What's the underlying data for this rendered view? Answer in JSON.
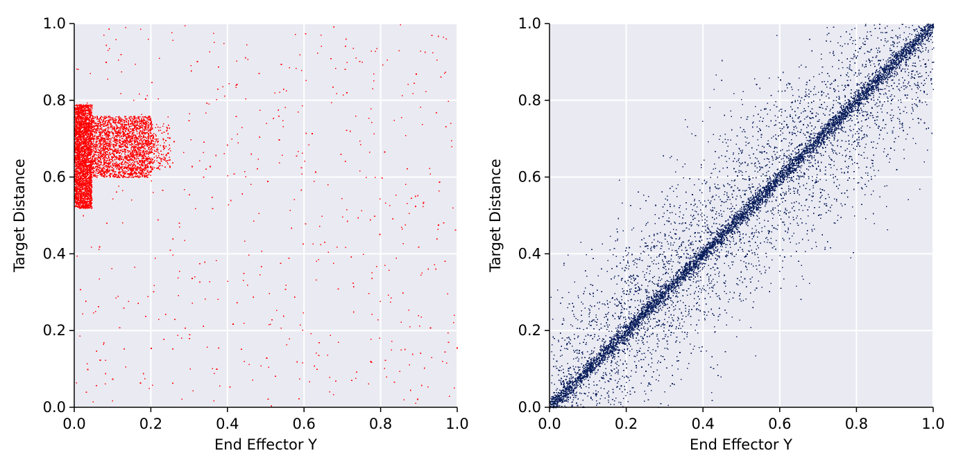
{
  "chart_data": [
    {
      "type": "scatter",
      "xlabel": "End Effector Y",
      "ylabel": "Target Distance",
      "xlim": [
        0.0,
        1.0
      ],
      "ylim": [
        0.0,
        1.0
      ],
      "xticks": [
        "0.0",
        "0.2",
        "0.4",
        "0.6",
        "0.8",
        "1.0"
      ],
      "yticks": [
        "0.0",
        "0.2",
        "0.4",
        "0.6",
        "0.8",
        "1.0"
      ],
      "grid": true,
      "background_color": "#eaeaf2",
      "point_color": "#ff0000",
      "clusters": [
        {
          "description_type": "dense_block",
          "x_range": [
            0.0,
            0.045
          ],
          "y_range": [
            0.52,
            0.79
          ],
          "count": 2600
        },
        {
          "description_type": "dense_block",
          "x_range": [
            0.045,
            0.2
          ],
          "y_range": [
            0.6,
            0.76
          ],
          "count": 2200
        },
        {
          "description_type": "sparse_tail",
          "x_range": [
            0.2,
            0.25
          ],
          "y_range": [
            0.62,
            0.74
          ],
          "count": 160
        },
        {
          "description_type": "uniform_noise",
          "x_range": [
            0.0,
            1.0
          ],
          "y_range": [
            0.0,
            1.0
          ],
          "count": 520
        }
      ]
    },
    {
      "type": "scatter",
      "xlabel": "End Effector Y",
      "ylabel": "Target Distance",
      "xlim": [
        0.0,
        1.0
      ],
      "ylim": [
        0.0,
        1.0
      ],
      "xticks": [
        "0.0",
        "0.2",
        "0.4",
        "0.6",
        "0.8",
        "1.0"
      ],
      "yticks": [
        "0.0",
        "0.2",
        "0.4",
        "0.6",
        "0.8",
        "1.0"
      ],
      "grid": true,
      "background_color": "#eaeaf2",
      "point_color": "#0b1f5c",
      "clusters": [
        {
          "description_type": "diagonal_tight",
          "relation": "y = x",
          "x_range": [
            0.0,
            1.0
          ],
          "spread": 0.012,
          "count": 5200
        },
        {
          "description_type": "diagonal_spread",
          "relation": "y = x",
          "x_range": [
            0.0,
            1.0
          ],
          "spread": 0.13,
          "count": 4200
        }
      ]
    }
  ]
}
